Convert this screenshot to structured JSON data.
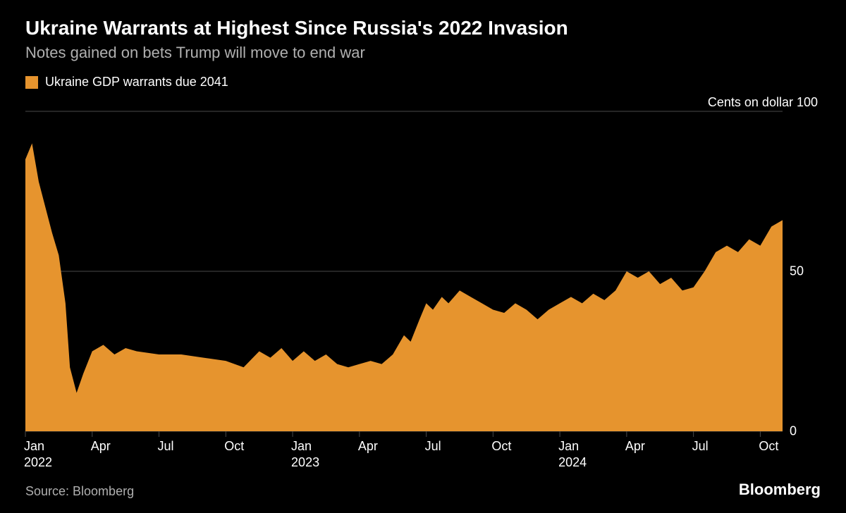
{
  "title": "Ukraine Warrants at Highest Since Russia's 2022 Invasion",
  "subtitle": "Notes gained on bets Trump will move to end war",
  "legend": {
    "label": "Ukraine GDP warrants due 2041",
    "color": "#e6942e"
  },
  "y_axis_title": "Cents on dollar 100",
  "chart": {
    "type": "area",
    "background_color": "#000000",
    "series_color": "#e6942e",
    "grid_color": "#4a4a4a",
    "tick_color": "#4a4a4a",
    "text_color": "#ffffff",
    "subtext_color": "#b0b0b0",
    "ylim": [
      0,
      100
    ],
    "yticks": [
      0,
      50
    ],
    "y_top_label": "Cents on dollar 100",
    "font_size_title": 28,
    "font_size_subtitle": 22,
    "font_size_tick": 18,
    "x_range_months": 34,
    "xticks": [
      {
        "month_index": 0,
        "label": "Jan\n2022"
      },
      {
        "month_index": 3,
        "label": "Apr"
      },
      {
        "month_index": 6,
        "label": "Jul"
      },
      {
        "month_index": 9,
        "label": "Oct"
      },
      {
        "month_index": 12,
        "label": "Jan\n2023"
      },
      {
        "month_index": 15,
        "label": "Apr"
      },
      {
        "month_index": 18,
        "label": "Jul"
      },
      {
        "month_index": 21,
        "label": "Oct"
      },
      {
        "month_index": 24,
        "label": "Jan\n2024"
      },
      {
        "month_index": 27,
        "label": "Apr"
      },
      {
        "month_index": 30,
        "label": "Jul"
      },
      {
        "month_index": 33,
        "label": "Oct"
      }
    ],
    "data": [
      {
        "m": 0.0,
        "v": 85
      },
      {
        "m": 0.3,
        "v": 90
      },
      {
        "m": 0.6,
        "v": 78
      },
      {
        "m": 0.9,
        "v": 70
      },
      {
        "m": 1.2,
        "v": 62
      },
      {
        "m": 1.5,
        "v": 55
      },
      {
        "m": 1.8,
        "v": 40
      },
      {
        "m": 2.0,
        "v": 20
      },
      {
        "m": 2.3,
        "v": 12
      },
      {
        "m": 2.6,
        "v": 18
      },
      {
        "m": 3.0,
        "v": 25
      },
      {
        "m": 3.5,
        "v": 27
      },
      {
        "m": 4.0,
        "v": 24
      },
      {
        "m": 4.5,
        "v": 26
      },
      {
        "m": 5.0,
        "v": 25
      },
      {
        "m": 6.0,
        "v": 24
      },
      {
        "m": 7.0,
        "v": 24
      },
      {
        "m": 8.0,
        "v": 23
      },
      {
        "m": 9.0,
        "v": 22
      },
      {
        "m": 9.8,
        "v": 20
      },
      {
        "m": 10.5,
        "v": 25
      },
      {
        "m": 11.0,
        "v": 23
      },
      {
        "m": 11.5,
        "v": 26
      },
      {
        "m": 12.0,
        "v": 22
      },
      {
        "m": 12.5,
        "v": 25
      },
      {
        "m": 13.0,
        "v": 22
      },
      {
        "m": 13.5,
        "v": 24
      },
      {
        "m": 14.0,
        "v": 21
      },
      {
        "m": 14.5,
        "v": 20
      },
      {
        "m": 15.0,
        "v": 21
      },
      {
        "m": 15.5,
        "v": 22
      },
      {
        "m": 16.0,
        "v": 21
      },
      {
        "m": 16.5,
        "v": 24
      },
      {
        "m": 17.0,
        "v": 30
      },
      {
        "m": 17.3,
        "v": 28
      },
      {
        "m": 17.7,
        "v": 35
      },
      {
        "m": 18.0,
        "v": 40
      },
      {
        "m": 18.3,
        "v": 38
      },
      {
        "m": 18.7,
        "v": 42
      },
      {
        "m": 19.0,
        "v": 40
      },
      {
        "m": 19.5,
        "v": 44
      },
      {
        "m": 20.0,
        "v": 42
      },
      {
        "m": 20.5,
        "v": 40
      },
      {
        "m": 21.0,
        "v": 38
      },
      {
        "m": 21.5,
        "v": 37
      },
      {
        "m": 22.0,
        "v": 40
      },
      {
        "m": 22.5,
        "v": 38
      },
      {
        "m": 23.0,
        "v": 35
      },
      {
        "m": 23.5,
        "v": 38
      },
      {
        "m": 24.0,
        "v": 40
      },
      {
        "m": 24.5,
        "v": 42
      },
      {
        "m": 25.0,
        "v": 40
      },
      {
        "m": 25.5,
        "v": 43
      },
      {
        "m": 26.0,
        "v": 41
      },
      {
        "m": 26.5,
        "v": 44
      },
      {
        "m": 27.0,
        "v": 50
      },
      {
        "m": 27.5,
        "v": 48
      },
      {
        "m": 28.0,
        "v": 50
      },
      {
        "m": 28.5,
        "v": 46
      },
      {
        "m": 29.0,
        "v": 48
      },
      {
        "m": 29.5,
        "v": 44
      },
      {
        "m": 30.0,
        "v": 45
      },
      {
        "m": 30.5,
        "v": 50
      },
      {
        "m": 31.0,
        "v": 56
      },
      {
        "m": 31.5,
        "v": 58
      },
      {
        "m": 32.0,
        "v": 56
      },
      {
        "m": 32.5,
        "v": 60
      },
      {
        "m": 33.0,
        "v": 58
      },
      {
        "m": 33.5,
        "v": 64
      },
      {
        "m": 34.0,
        "v": 66
      }
    ]
  },
  "source": "Source: Bloomberg",
  "brand": "Bloomberg"
}
